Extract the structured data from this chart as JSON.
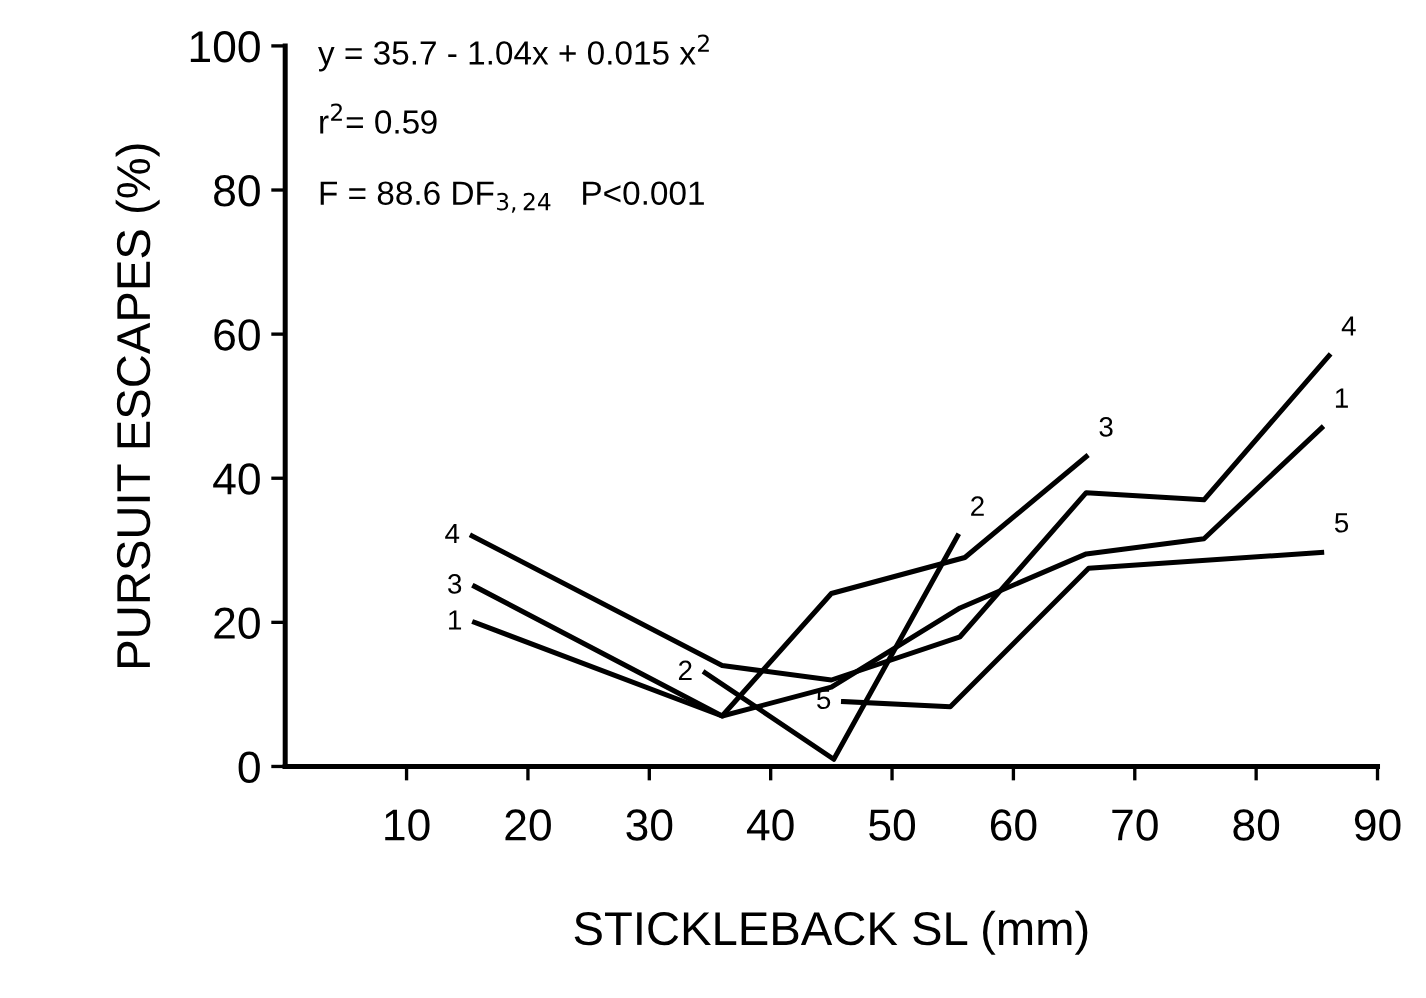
{
  "chart_data": {
    "type": "line",
    "xlabel": "STICKLEBACK SL (mm)",
    "ylabel": "PURSUIT ESCAPES (%)",
    "annotations": [
      "y = 35.7 - 1.04x + 0.015 x$^{2}$",
      "r$^{2}$= 0.59",
      "F = 88.6 DF$_{3,24}$   P<0.001"
    ],
    "series": [
      {
        "name": "1",
        "color": "#000000",
        "x": [
          15.6,
          36,
          45,
          55.6,
          66,
          75.7,
          85.4
        ],
        "values": [
          20,
          7,
          11,
          22,
          29.5,
          31.6,
          47
        ]
      },
      {
        "name": "2",
        "color": "#000000",
        "x": [
          34.6,
          45.2,
          55.4
        ],
        "values": [
          13,
          1,
          32
        ]
      },
      {
        "name": "3",
        "color": "#000000",
        "x": [
          15.6,
          36,
          45,
          56,
          66
        ],
        "values": [
          25,
          7,
          24,
          29,
          43
        ]
      },
      {
        "name": "4",
        "color": "#000000",
        "x": [
          15.4,
          36,
          45,
          55.6,
          66,
          75.7,
          86
        ],
        "values": [
          32,
          14,
          12,
          18,
          38,
          37,
          57
        ]
      },
      {
        "name": "5",
        "color": "#000000",
        "x": [
          46,
          54.8,
          66.2,
          85.4
        ],
        "values": [
          9,
          8.3,
          27.5,
          29.7
        ]
      }
    ],
    "xlim": [
      0,
      90
    ],
    "xticks": [
      10,
      20,
      30,
      40,
      50,
      60,
      70,
      80,
      90
    ],
    "ylim": [
      0,
      100
    ],
    "yticks": [
      0,
      20,
      40,
      60,
      80,
      100
    ],
    "grid": false,
    "legend": false,
    "marker": "none",
    "line_style": "solid"
  }
}
